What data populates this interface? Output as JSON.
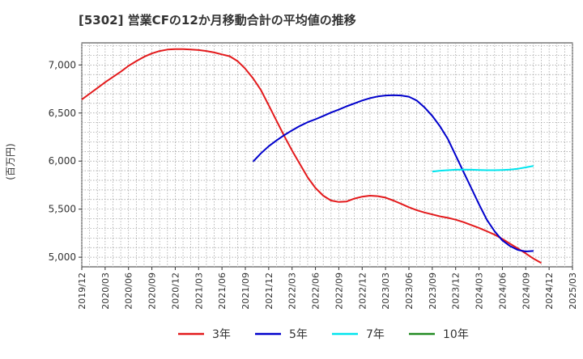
{
  "chart_data": {
    "type": "line",
    "title": "[5302]  営業CFの12か月移動合計の平均値の推移",
    "ylabel": "(百万円)",
    "xlabel": "",
    "ylim": [
      4900,
      7230
    ],
    "yticks": [
      5000,
      5500,
      6000,
      6500,
      7000
    ],
    "ytick_labels": [
      "5,000",
      "5,500",
      "6,000",
      "6,500",
      "7,000"
    ],
    "xlim": [
      "2019-12",
      "2025-03"
    ],
    "xticks": [
      "2019/12",
      "2020/03",
      "2020/06",
      "2020/09",
      "2020/12",
      "2021/03",
      "2021/06",
      "2021/09",
      "2021/12",
      "2022/03",
      "2022/06",
      "2022/09",
      "2022/12",
      "2023/03",
      "2023/06",
      "2023/09",
      "2023/12",
      "2024/03",
      "2024/06",
      "2024/09",
      "2024/12",
      "2025/03"
    ],
    "grid": true,
    "legend_position": "bottom",
    "series": [
      {
        "name": "3年",
        "color": "#e31a1c",
        "points": [
          [
            "2019-12",
            6640
          ],
          [
            "2020-01",
            6700
          ],
          [
            "2020-02",
            6760
          ],
          [
            "2020-03",
            6820
          ],
          [
            "2020-04",
            6875
          ],
          [
            "2020-05",
            6930
          ],
          [
            "2020-06",
            6990
          ],
          [
            "2020-07",
            7040
          ],
          [
            "2020-08",
            7085
          ],
          [
            "2020-09",
            7120
          ],
          [
            "2020-10",
            7145
          ],
          [
            "2020-11",
            7160
          ],
          [
            "2020-12",
            7165
          ],
          [
            "2021-01",
            7165
          ],
          [
            "2021-02",
            7160
          ],
          [
            "2021-03",
            7155
          ],
          [
            "2021-04",
            7145
          ],
          [
            "2021-05",
            7130
          ],
          [
            "2021-06",
            7110
          ],
          [
            "2021-07",
            7090
          ],
          [
            "2021-08",
            7040
          ],
          [
            "2021-09",
            6960
          ],
          [
            "2021-10",
            6860
          ],
          [
            "2021-11",
            6740
          ],
          [
            "2021-12",
            6580
          ],
          [
            "2022-01",
            6420
          ],
          [
            "2022-02",
            6260
          ],
          [
            "2022-03",
            6110
          ],
          [
            "2022-04",
            5970
          ],
          [
            "2022-05",
            5830
          ],
          [
            "2022-06",
            5720
          ],
          [
            "2022-07",
            5640
          ],
          [
            "2022-08",
            5590
          ],
          [
            "2022-09",
            5575
          ],
          [
            "2022-10",
            5580
          ],
          [
            "2022-11",
            5610
          ],
          [
            "2022-12",
            5630
          ],
          [
            "2023-01",
            5640
          ],
          [
            "2023-02",
            5635
          ],
          [
            "2023-03",
            5620
          ],
          [
            "2023-04",
            5590
          ],
          [
            "2023-05",
            5555
          ],
          [
            "2023-06",
            5520
          ],
          [
            "2023-07",
            5490
          ],
          [
            "2023-08",
            5465
          ],
          [
            "2023-09",
            5445
          ],
          [
            "2023-10",
            5425
          ],
          [
            "2023-11",
            5410
          ],
          [
            "2023-12",
            5390
          ],
          [
            "2024-01",
            5365
          ],
          [
            "2024-02",
            5335
          ],
          [
            "2024-03",
            5305
          ],
          [
            "2024-04",
            5270
          ],
          [
            "2024-05",
            5235
          ],
          [
            "2024-06",
            5190
          ],
          [
            "2024-07",
            5140
          ],
          [
            "2024-08",
            5090
          ],
          [
            "2024-09",
            5040
          ],
          [
            "2024-10",
            4985
          ],
          [
            "2024-11",
            4940
          ]
        ]
      },
      {
        "name": "5年",
        "color": "#0000cc",
        "points": [
          [
            "2021-10",
            5995
          ],
          [
            "2021-11",
            6080
          ],
          [
            "2021-12",
            6155
          ],
          [
            "2022-01",
            6215
          ],
          [
            "2022-02",
            6270
          ],
          [
            "2022-03",
            6320
          ],
          [
            "2022-04",
            6365
          ],
          [
            "2022-05",
            6405
          ],
          [
            "2022-06",
            6435
          ],
          [
            "2022-07",
            6470
          ],
          [
            "2022-08",
            6505
          ],
          [
            "2022-09",
            6535
          ],
          [
            "2022-10",
            6570
          ],
          [
            "2022-11",
            6600
          ],
          [
            "2022-12",
            6630
          ],
          [
            "2023-01",
            6655
          ],
          [
            "2023-02",
            6672
          ],
          [
            "2023-03",
            6682
          ],
          [
            "2023-04",
            6685
          ],
          [
            "2023-05",
            6682
          ],
          [
            "2023-06",
            6670
          ],
          [
            "2023-07",
            6630
          ],
          [
            "2023-08",
            6560
          ],
          [
            "2023-09",
            6470
          ],
          [
            "2023-10",
            6360
          ],
          [
            "2023-11",
            6230
          ],
          [
            "2023-12",
            6060
          ],
          [
            "2024-01",
            5890
          ],
          [
            "2024-02",
            5720
          ],
          [
            "2024-03",
            5550
          ],
          [
            "2024-04",
            5390
          ],
          [
            "2024-05",
            5270
          ],
          [
            "2024-06",
            5175
          ],
          [
            "2024-07",
            5115
          ],
          [
            "2024-08",
            5075
          ],
          [
            "2024-09",
            5060
          ],
          [
            "2024-10",
            5065
          ]
        ]
      },
      {
        "name": "7年",
        "color": "#00e5ee",
        "points": [
          [
            "2023-09",
            5890
          ],
          [
            "2023-10",
            5900
          ],
          [
            "2023-11",
            5905
          ],
          [
            "2023-12",
            5910
          ],
          [
            "2024-01",
            5912
          ],
          [
            "2024-02",
            5910
          ],
          [
            "2024-03",
            5908
          ],
          [
            "2024-04",
            5905
          ],
          [
            "2024-05",
            5905
          ],
          [
            "2024-06",
            5908
          ],
          [
            "2024-07",
            5912
          ],
          [
            "2024-08",
            5920
          ],
          [
            "2024-09",
            5935
          ],
          [
            "2024-10",
            5950
          ]
        ]
      },
      {
        "name": "10年",
        "color": "#228b22",
        "points": []
      }
    ]
  }
}
